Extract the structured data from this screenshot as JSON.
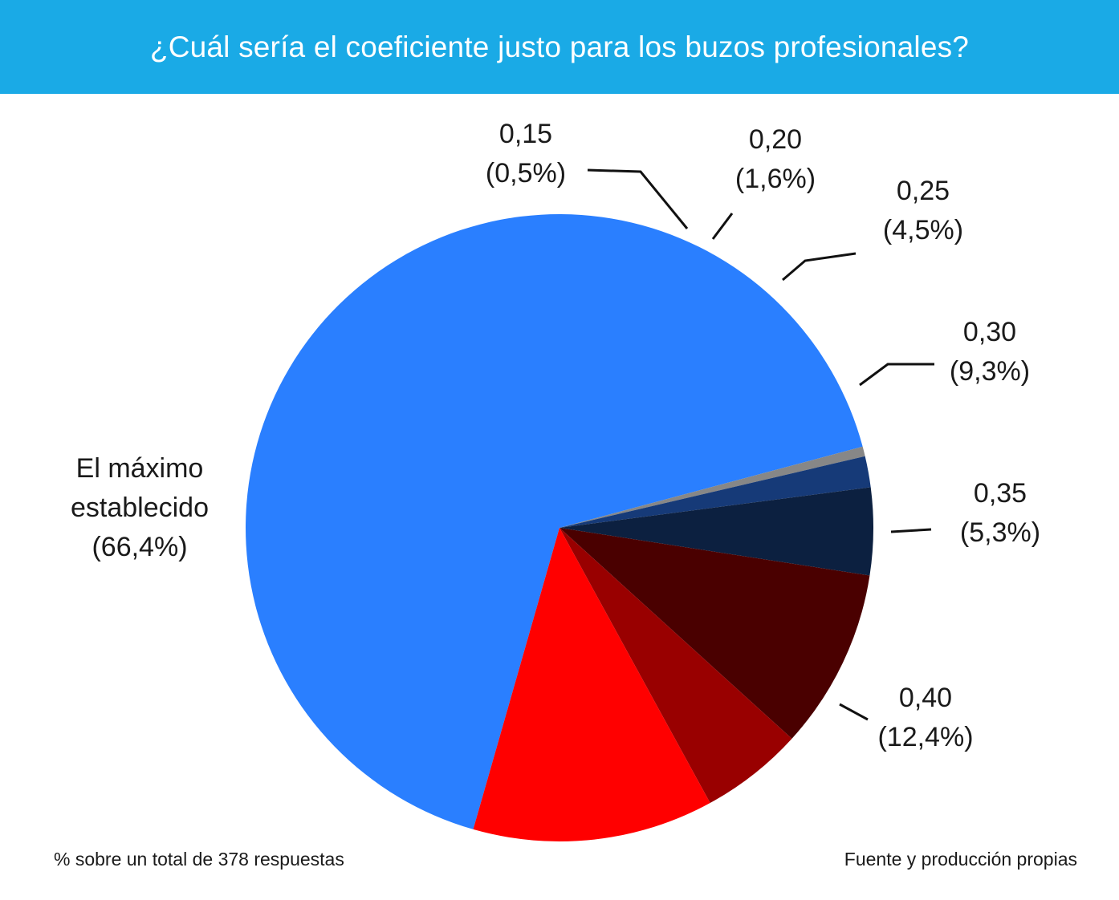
{
  "header": {
    "title": "¿Cuál sería el coeficiente justo para los buzos profesionales?",
    "background_color": "#1aaae6",
    "text_color": "#ffffff"
  },
  "chart_data": {
    "type": "pie",
    "title": "¿Cuál sería el coeficiente justo para los buzos profesionales?",
    "slices": [
      {
        "label": "El máximo establecido",
        "label_lines": [
          "El máximo",
          "establecido",
          "(66,4%)"
        ],
        "value": 66.4,
        "color": "#2a7fff"
      },
      {
        "label": "0,15",
        "label_lines": [
          "0,15",
          "(0,5%)"
        ],
        "value": 0.5,
        "color": "#878787"
      },
      {
        "label": "0,20",
        "label_lines": [
          "0,20",
          "(1,6%)"
        ],
        "value": 1.6,
        "color": "#163a78"
      },
      {
        "label": "0,25",
        "label_lines": [
          "0,25",
          "(4,5%)"
        ],
        "value": 4.5,
        "color": "#0c2040"
      },
      {
        "label": "0,30",
        "label_lines": [
          "0,30",
          "(9,3%)"
        ],
        "value": 9.3,
        "color": "#4a0000"
      },
      {
        "label": "0,35",
        "label_lines": [
          "0,35",
          "(5,3%)"
        ],
        "value": 5.3,
        "color": "#990000"
      },
      {
        "label": "0,40",
        "label_lines": [
          "0,40",
          "(12,4%)"
        ],
        "value": 12.4,
        "color": "#ff0000"
      }
    ]
  },
  "footer": {
    "left_note": "% sobre un total de 378 respuestas",
    "right_note": "Fuente y producción propias"
  }
}
